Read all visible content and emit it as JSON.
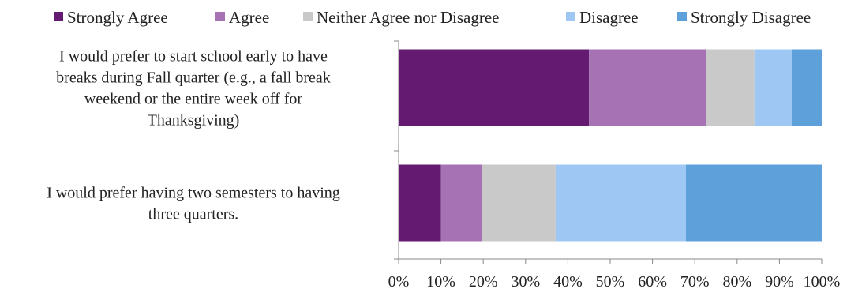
{
  "chart_data": {
    "type": "bar",
    "orientation": "horizontal",
    "stacked": "percent",
    "categories": [
      "I would prefer to start school early to have breaks during Fall quarter (e.g., a fall break weekend or the entire week off for Thanksgiving)",
      "I would prefer having two semesters to having three quarters."
    ],
    "category_label_lines": [
      [
        "I would prefer to start school early to have",
        "breaks during Fall quarter (e.g., a fall break",
        "weekend or the entire week off for",
        "Thanksgiving)"
      ],
      [
        "I would prefer having two semesters to having",
        "three quarters."
      ]
    ],
    "series": [
      {
        "name": "Strongly Agree",
        "color": "#651a72",
        "values": [
          45,
          10
        ]
      },
      {
        "name": "Agree",
        "color": "#a672b3",
        "values": [
          27.7,
          9.6
        ]
      },
      {
        "name": "Neither Agree nor Disagree",
        "color": "#c9c9c9",
        "values": [
          11.4,
          17.5
        ]
      },
      {
        "name": "Disagree",
        "color": "#9ec8f3",
        "values": [
          8.8,
          30.8
        ]
      },
      {
        "name": "Strongly Disagree",
        "color": "#5ea1da",
        "values": [
          7.1,
          32.1
        ]
      }
    ],
    "xlim": [
      0,
      100
    ],
    "x_ticks": [
      "0%",
      "10%",
      "20%",
      "30%",
      "40%",
      "50%",
      "60%",
      "70%",
      "80%",
      "90%",
      "100%"
    ],
    "xlabel": "",
    "ylabel": "",
    "title": "",
    "grid": false,
    "legend_position": "top"
  }
}
